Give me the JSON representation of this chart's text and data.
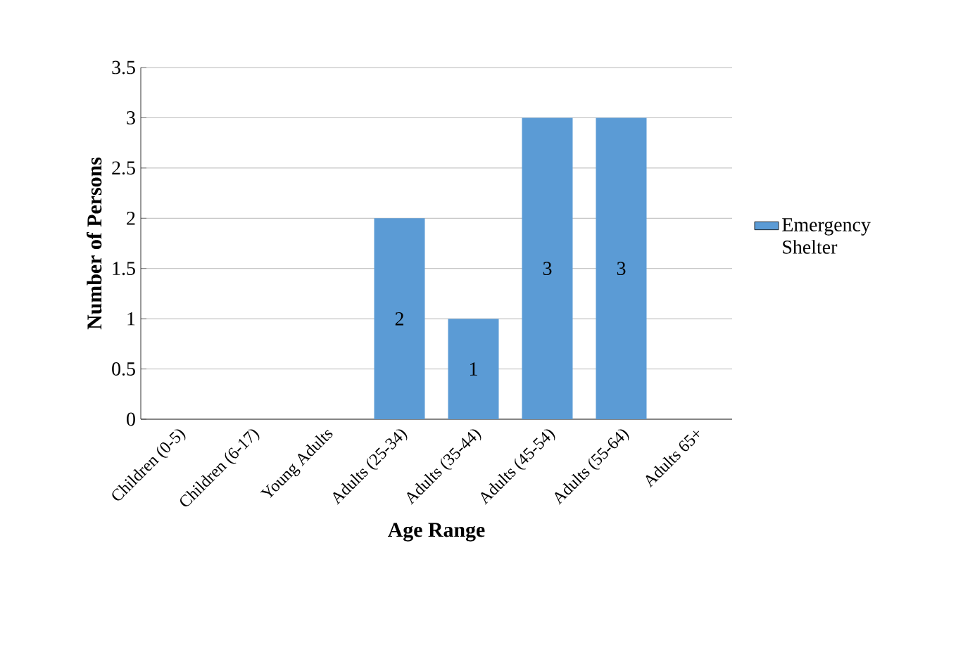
{
  "chart_data": {
    "type": "bar",
    "xlabel": "Age Range",
    "ylabel": "Number of Persons",
    "categories": [
      "Children (0-5)",
      "Children (6-17)",
      "Young Adults",
      "Adults (25-34)",
      "Adults (35-44)",
      "Adults (45-54)",
      "Adults (55-64)",
      "Adults 65+"
    ],
    "series": [
      {
        "name": "Emergency Shelter",
        "color": "#5b9bd5",
        "values": [
          0,
          0,
          0,
          2,
          1,
          3,
          3,
          0
        ],
        "value_labels": [
          null,
          null,
          null,
          "2",
          "1",
          "3",
          "3",
          null
        ]
      }
    ],
    "ylim": [
      0,
      3.5
    ],
    "yticks": [
      0,
      0.5,
      1,
      1.5,
      2,
      2.5,
      3,
      3.5
    ],
    "grid": "y",
    "legend": "right"
  }
}
